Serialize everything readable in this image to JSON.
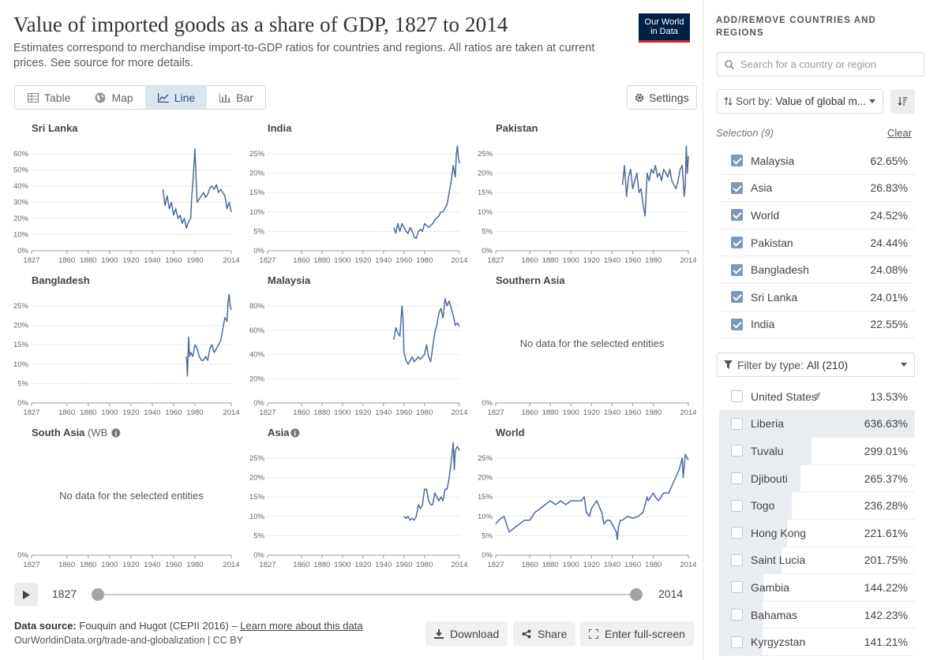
{
  "header": {
    "title": "Value of imported goods as a share of GDP, 1827 to 2014",
    "subtitle": "Estimates correspond to merchandise import-to-GDP ratios for countries and regions. All ratios are taken at current prices. See source for more details.",
    "logo_line1": "Our World",
    "logo_line2": "in Data"
  },
  "tabs": [
    {
      "label": "Table",
      "icon": "table-icon",
      "active": false
    },
    {
      "label": "Map",
      "icon": "globe-icon",
      "active": false
    },
    {
      "label": "Line",
      "icon": "line-chart-icon",
      "active": true
    },
    {
      "label": "Bar",
      "icon": "bar-chart-icon",
      "active": false
    }
  ],
  "settings_label": "Settings",
  "timeline": {
    "start": "1827",
    "end": "2014"
  },
  "footer": {
    "source_label": "Data source:",
    "source_text": "Fouquin and Hugot (CEPII 2016) –",
    "learn_more": "Learn more about this data",
    "license": "OurWorldinData.org/trade-and-globalization | CC BY",
    "download": "Download",
    "share": "Share",
    "fullscreen": "Enter full-screen"
  },
  "sidebar": {
    "heading": "ADD/REMOVE COUNTRIES AND REGIONS",
    "search_placeholder": "Search for a country or region",
    "sort_label": "Sort by:",
    "sort_value": "Value of global m...",
    "selection_label": "Selection (9)",
    "clear_label": "Clear",
    "selected": [
      {
        "name": "Malaysia",
        "value": "62.65%"
      },
      {
        "name": "Asia",
        "value": "26.83%"
      },
      {
        "name": "World",
        "value": "24.52%"
      },
      {
        "name": "Pakistan",
        "value": "24.44%"
      },
      {
        "name": "Bangladesh",
        "value": "24.08%"
      },
      {
        "name": "Sri Lanka",
        "value": "24.01%"
      },
      {
        "name": "India",
        "value": "22.55%"
      }
    ],
    "filter_label": "Filter by type:",
    "filter_value": "All (210)",
    "others": [
      {
        "name": "United States",
        "value": "13.53%",
        "frac": 0.0,
        "located": true
      },
      {
        "name": "Liberia",
        "value": "636.63%",
        "frac": 1.0
      },
      {
        "name": "Tuvalu",
        "value": "299.01%",
        "frac": 0.47
      },
      {
        "name": "Djibouti",
        "value": "265.37%",
        "frac": 0.417
      },
      {
        "name": "Togo",
        "value": "236.28%",
        "frac": 0.371
      },
      {
        "name": "Hong Kong",
        "value": "221.61%",
        "frac": 0.348
      },
      {
        "name": "Saint Lucia",
        "value": "201.75%",
        "frac": 0.317
      },
      {
        "name": "Gambia",
        "value": "144.22%",
        "frac": 0.227
      },
      {
        "name": "Bahamas",
        "value": "142.23%",
        "frac": 0.223
      },
      {
        "name": "Kyrgyzstan",
        "value": "141.21%",
        "frac": 0.222
      }
    ]
  },
  "chart_data": {
    "type": "line",
    "x_ticks": [
      "1827",
      "1860",
      "1880",
      "1900",
      "1920",
      "1940",
      "1960",
      "1980",
      "2014"
    ],
    "xlim": [
      1827,
      2014
    ],
    "color": "#4c6a9c",
    "no_data_text": "No data for the selected entities",
    "panels": [
      {
        "name": "Sri Lanka",
        "ylim": [
          0,
          60
        ],
        "yticks": [
          "0%",
          "10%",
          "20%",
          "30%",
          "40%",
          "50%",
          "60%"
        ],
        "x": [
          1950,
          1952,
          1954,
          1956,
          1958,
          1960,
          1962,
          1964,
          1966,
          1968,
          1970,
          1972,
          1974,
          1976,
          1977,
          1978,
          1979,
          1980,
          1981,
          1982,
          1984,
          1986,
          1988,
          1990,
          1992,
          1994,
          1996,
          1998,
          2000,
          2002,
          2004,
          2006,
          2008,
          2010,
          2012,
          2014
        ],
        "y": [
          38,
          28,
          34,
          26,
          30,
          22,
          26,
          20,
          22,
          17,
          20,
          14,
          18,
          20,
          33,
          42,
          52,
          63,
          45,
          30,
          32,
          34,
          36,
          33,
          35,
          39,
          40,
          38,
          41,
          36,
          38,
          36,
          34,
          26,
          30,
          24
        ]
      },
      {
        "name": "India",
        "ylim": [
          0,
          25
        ],
        "yticks": [
          "0%",
          "5%",
          "10%",
          "15%",
          "20%",
          "25%"
        ],
        "x": [
          1950,
          1952,
          1954,
          1956,
          1958,
          1960,
          1962,
          1964,
          1966,
          1968,
          1970,
          1972,
          1974,
          1976,
          1978,
          1980,
          1982,
          1984,
          1986,
          1988,
          1990,
          1992,
          1994,
          1996,
          1998,
          2000,
          2002,
          2004,
          2006,
          2008,
          2010,
          2011,
          2012,
          2013,
          2014
        ],
        "y": [
          6,
          4.5,
          7,
          5,
          7,
          6,
          5,
          4.5,
          6,
          5,
          3.5,
          3.2,
          5,
          5.5,
          5,
          7,
          6.5,
          6,
          6.5,
          7,
          8,
          8.5,
          9,
          10,
          10,
          11,
          12,
          15,
          18,
          22,
          19,
          25,
          27,
          24,
          22.5
        ]
      },
      {
        "name": "Pakistan",
        "ylim": [
          0,
          25
        ],
        "yticks": [
          "0%",
          "5%",
          "10%",
          "15%",
          "20%",
          "25%"
        ],
        "x": [
          1950,
          1952,
          1954,
          1956,
          1958,
          1960,
          1962,
          1964,
          1966,
          1968,
          1970,
          1972,
          1974,
          1976,
          1978,
          1980,
          1982,
          1984,
          1986,
          1988,
          1990,
          1992,
          1994,
          1996,
          1998,
          2000,
          2002,
          2004,
          2006,
          2008,
          2010,
          2011,
          2012,
          2013,
          2014
        ],
        "y": [
          17,
          22,
          14,
          19,
          21,
          16,
          18,
          20,
          15,
          16,
          12,
          9,
          20,
          18,
          21,
          20,
          22,
          19,
          20,
          18,
          21,
          20,
          19,
          21,
          18,
          17,
          16,
          18,
          21,
          22,
          14,
          17,
          27,
          20,
          24.4
        ]
      },
      {
        "name": "Bangladesh",
        "ylim": [
          0,
          25
        ],
        "yticks": [
          "0%",
          "5%",
          "10%",
          "15%",
          "20%",
          "25%"
        ],
        "x": [
          1972,
          1973,
          1974,
          1975,
          1976,
          1978,
          1980,
          1982,
          1984,
          1986,
          1988,
          1990,
          1992,
          1994,
          1996,
          1998,
          2000,
          2002,
          2004,
          2006,
          2008,
          2010,
          2011,
          2012,
          2013,
          2014
        ],
        "y": [
          12,
          7,
          17,
          12,
          13,
          12,
          15,
          14,
          12,
          11,
          11,
          12,
          11,
          14,
          15,
          13,
          14,
          15,
          16,
          19,
          22,
          21,
          26,
          28,
          25,
          24
        ]
      },
      {
        "name": "Malaysia",
        "ylim": [
          0,
          80
        ],
        "yticks": [
          "0%",
          "20%",
          "40%",
          "60%",
          "80%"
        ],
        "x": [
          1950,
          1952,
          1954,
          1956,
          1958,
          1959,
          1960,
          1962,
          1964,
          1966,
          1968,
          1970,
          1972,
          1974,
          1976,
          1978,
          1980,
          1982,
          1984,
          1986,
          1988,
          1990,
          1992,
          1994,
          1996,
          1998,
          2000,
          2002,
          2004,
          2006,
          2008,
          2010,
          2012,
          2014
        ],
        "y": [
          52,
          62,
          58,
          55,
          80,
          70,
          42,
          35,
          32,
          35,
          38,
          34,
          36,
          38,
          36,
          38,
          40,
          48,
          38,
          34,
          46,
          58,
          64,
          74,
          78,
          70,
          86,
          80,
          84,
          78,
          72,
          64,
          66,
          63
        ]
      },
      {
        "name": "Southern Asia",
        "no_data": true
      },
      {
        "name": "South Asia (WB",
        "no_data": true,
        "info": true
      },
      {
        "name": "Asia",
        "ylim": [
          0,
          25
        ],
        "yticks": [
          "0%",
          "5%",
          "10%",
          "15%",
          "20%",
          "25%"
        ],
        "info": true,
        "x": [
          1960,
          1962,
          1964,
          1966,
          1968,
          1970,
          1972,
          1974,
          1976,
          1978,
          1980,
          1982,
          1984,
          1986,
          1988,
          1990,
          1992,
          1994,
          1996,
          1998,
          2000,
          2002,
          2004,
          2006,
          2008,
          2009,
          2010,
          2012,
          2014
        ],
        "y": [
          10,
          9.5,
          10,
          9,
          9.5,
          9,
          10,
          13,
          12,
          13,
          17,
          17,
          14,
          13,
          13,
          16,
          15,
          14,
          15,
          14,
          17,
          17,
          20,
          24,
          29,
          22,
          27,
          28,
          27
        ]
      },
      {
        "name": "World",
        "ylim": [
          0,
          25
        ],
        "yticks": [
          "0%",
          "5%",
          "10%",
          "15%",
          "20%",
          "25%"
        ],
        "x": [
          1827,
          1830,
          1835,
          1840,
          1845,
          1850,
          1855,
          1860,
          1865,
          1870,
          1875,
          1880,
          1885,
          1890,
          1895,
          1900,
          1905,
          1910,
          1913,
          1915,
          1918,
          1920,
          1925,
          1930,
          1932,
          1935,
          1938,
          1940,
          1942,
          1944,
          1945,
          1946,
          1948,
          1950,
          1955,
          1960,
          1965,
          1970,
          1974,
          1975,
          1980,
          1982,
          1985,
          1990,
          1995,
          2000,
          2005,
          2008,
          2009,
          2011,
          2014
        ],
        "y": [
          8,
          9,
          10,
          6,
          7,
          8,
          9,
          9,
          11,
          12,
          13,
          14,
          13,
          14,
          13,
          14,
          14,
          14,
          15,
          11,
          10,
          12,
          14,
          11,
          8,
          9,
          9,
          8,
          7,
          6,
          4,
          7,
          9,
          9,
          10,
          9.5,
          10,
          11,
          15,
          14,
          16,
          15,
          14,
          16,
          16,
          19,
          22,
          25,
          20,
          26,
          24.5
        ]
      }
    ]
  }
}
